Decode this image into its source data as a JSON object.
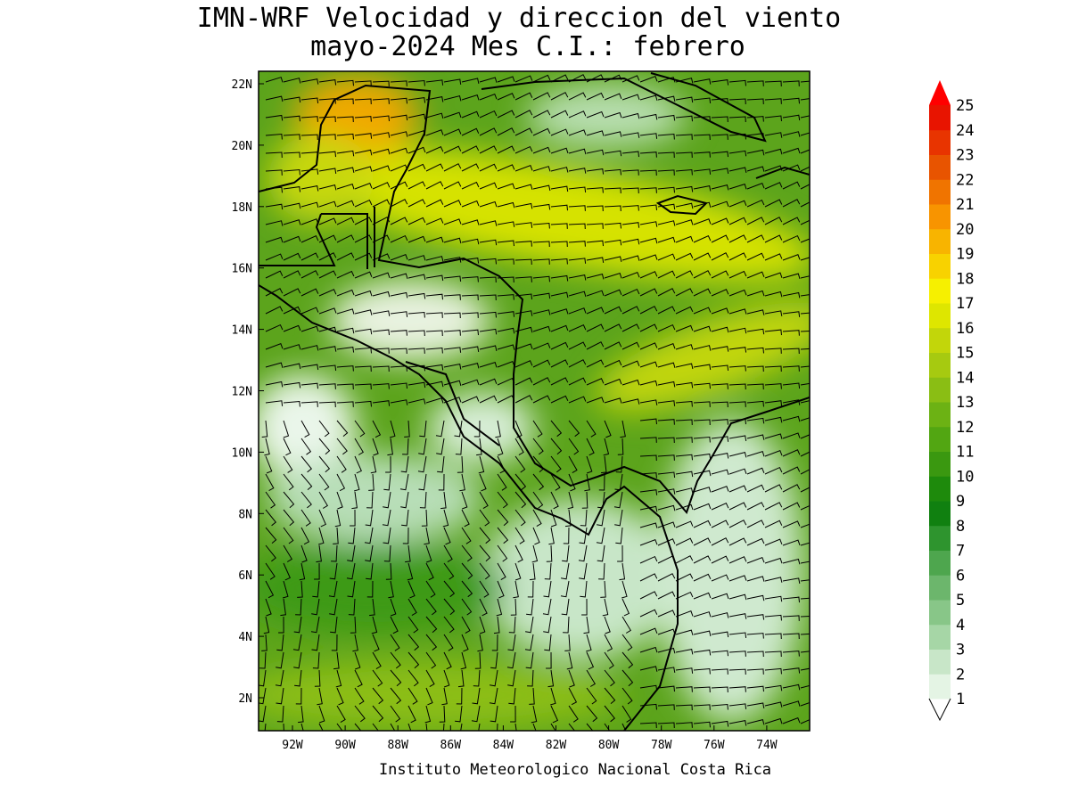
{
  "title": [
    "IMN-WRF Velocidad y direccion del viento",
    "mayo-2024 Mes C.I.: febrero"
  ],
  "map": {
    "lat_labels": [
      "22N",
      "20N",
      "18N",
      "16N",
      "14N",
      "12N",
      "10N",
      "8N",
      "6N",
      "4N",
      "2N"
    ],
    "lon_labels": [
      "92W",
      "90W",
      "88W",
      "86W",
      "84W",
      "82W",
      "80W",
      "78W",
      "76W",
      "74W"
    ]
  },
  "colorbar": {
    "levels": [
      1,
      2,
      3,
      4,
      5,
      6,
      7,
      8,
      9,
      10,
      11,
      12,
      13,
      14,
      15,
      16,
      17,
      18,
      19,
      20,
      21,
      22,
      23,
      24,
      25
    ],
    "colors": [
      "#e4f4e4",
      "#c8e6c8",
      "#a6d6a6",
      "#88c688",
      "#6cb66c",
      "#4ea64e",
      "#2e942e",
      "#108010",
      "#1e8a0c",
      "#3a9810",
      "#52a612",
      "#6cb214",
      "#8abe14",
      "#a6ca10",
      "#c2d60a",
      "#dee600",
      "#f6f000",
      "#f8d200",
      "#f8b400",
      "#f89400",
      "#f07400",
      "#e85400",
      "#e83400",
      "#e81400",
      "#ff0000"
    ]
  },
  "footer": "Instituto Meteorologico Nacional Costa Rica"
}
